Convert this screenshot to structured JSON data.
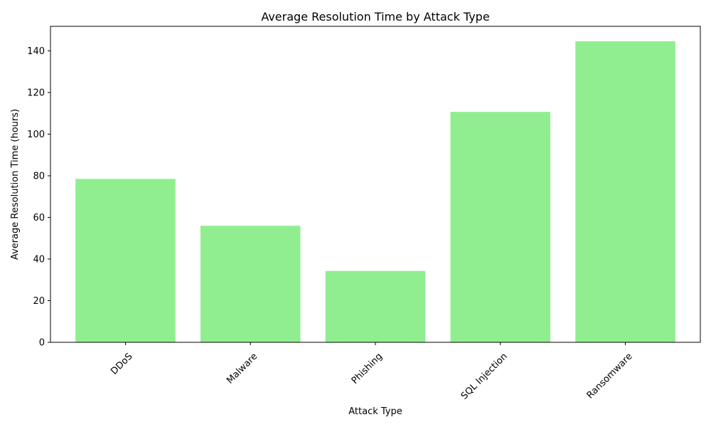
{
  "chart_data": {
    "type": "bar",
    "title": "Average Resolution Time by Attack Type",
    "xlabel": "Attack Type",
    "ylabel": "Average Resolution Time (hours)",
    "categories": [
      "DDoS",
      "Malware",
      "Phishing",
      "SQL Injection",
      "Ransomware"
    ],
    "values": [
      78.5,
      56,
      34.3,
      110.7,
      144.6
    ],
    "ylim": [
      0,
      151.8
    ],
    "yticks": [
      0,
      20,
      40,
      60,
      80,
      100,
      120,
      140
    ],
    "xtick_rotation": 45,
    "grid": false,
    "legend": "none",
    "bar_color": "#90ee90"
  }
}
